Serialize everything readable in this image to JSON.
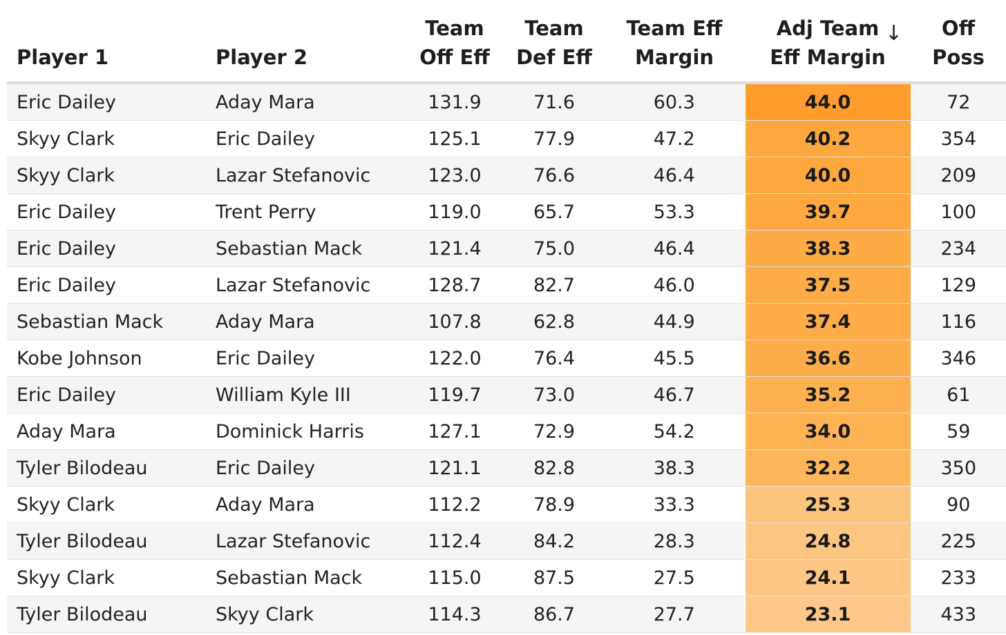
{
  "columns": [
    {
      "key": "p1",
      "label": "Player 1",
      "align": "left"
    },
    {
      "key": "p2",
      "label": "Player 2",
      "align": "left"
    },
    {
      "key": "off",
      "label": "Team\nOff Eff",
      "align": "center"
    },
    {
      "key": "def",
      "label": "Team\nDef Eff",
      "align": "center"
    },
    {
      "key": "margin",
      "label": "Team Eff\nMargin",
      "align": "center"
    },
    {
      "key": "adj",
      "label": "Adj Team\nEff Margin",
      "align": "center",
      "sorted": true,
      "sort_icon": "↓"
    },
    {
      "key": "poss",
      "label": "Off\nPoss",
      "align": "center"
    }
  ],
  "rows": [
    {
      "p1": "Eric Dailey",
      "p2": "Aday Mara",
      "off": "131.9",
      "def": "71.6",
      "margin": "60.3",
      "adj": "44.0",
      "adj_color": "#fe9d2b",
      "poss": "72"
    },
    {
      "p1": "Skyy Clark",
      "p2": "Eric Dailey",
      "off": "125.1",
      "def": "77.9",
      "margin": "47.2",
      "adj": "40.2",
      "adj_color": "#fda83f",
      "poss": "354"
    },
    {
      "p1": "Skyy Clark",
      "p2": "Lazar Stefanovic",
      "off": "123.0",
      "def": "76.6",
      "margin": "46.4",
      "adj": "40.0",
      "adj_color": "#fda83f",
      "poss": "209"
    },
    {
      "p1": "Eric Dailey",
      "p2": "Trent Perry",
      "off": "119.0",
      "def": "65.7",
      "margin": "53.3",
      "adj": "39.7",
      "adj_color": "#fda940",
      "poss": "100"
    },
    {
      "p1": "Eric Dailey",
      "p2": "Sebastian Mack",
      "off": "121.4",
      "def": "75.0",
      "margin": "46.4",
      "adj": "38.3",
      "adj_color": "#fdab45",
      "poss": "234"
    },
    {
      "p1": "Eric Dailey",
      "p2": "Lazar Stefanovic",
      "off": "128.7",
      "def": "82.7",
      "margin": "46.0",
      "adj": "37.5",
      "adj_color": "#fdac47",
      "poss": "129"
    },
    {
      "p1": "Sebastian Mack",
      "p2": "Aday Mara",
      "off": "107.8",
      "def": "62.8",
      "margin": "44.9",
      "adj": "37.4",
      "adj_color": "#fdac47",
      "poss": "116"
    },
    {
      "p1": "Kobe Johnson",
      "p2": "Eric Dailey",
      "off": "122.0",
      "def": "76.4",
      "margin": "45.5",
      "adj": "36.6",
      "adj_color": "#fdad4a",
      "poss": "346"
    },
    {
      "p1": "Eric Dailey",
      "p2": "William Kyle III",
      "off": "119.7",
      "def": "73.0",
      "margin": "46.7",
      "adj": "35.2",
      "adj_color": "#fdb04f",
      "poss": "61"
    },
    {
      "p1": "Aday Mara",
      "p2": "Dominick Harris",
      "off": "127.1",
      "def": "72.9",
      "margin": "54.2",
      "adj": "34.0",
      "adj_color": "#fdb253",
      "poss": "59"
    },
    {
      "p1": "Tyler Bilodeau",
      "p2": "Eric Dailey",
      "off": "121.1",
      "def": "82.8",
      "margin": "38.3",
      "adj": "32.2",
      "adj_color": "#fdb65a",
      "poss": "350"
    },
    {
      "p1": "Skyy Clark",
      "p2": "Aday Mara",
      "off": "112.2",
      "def": "78.9",
      "margin": "33.3",
      "adj": "25.3",
      "adj_color": "#fdc47e",
      "poss": "90"
    },
    {
      "p1": "Tyler Bilodeau",
      "p2": "Lazar Stefanovic",
      "off": "112.4",
      "def": "84.2",
      "margin": "28.3",
      "adj": "24.8",
      "adj_color": "#fdc582",
      "poss": "225"
    },
    {
      "p1": "Skyy Clark",
      "p2": "Sebastian Mack",
      "off": "115.0",
      "def": "87.5",
      "margin": "27.5",
      "adj": "24.1",
      "adj_color": "#fdc685",
      "poss": "233"
    },
    {
      "p1": "Tyler Bilodeau",
      "p2": "Skyy Clark",
      "off": "114.3",
      "def": "86.7",
      "margin": "27.7",
      "adj": "23.1",
      "adj_color": "#fdc888",
      "poss": "433"
    }
  ]
}
